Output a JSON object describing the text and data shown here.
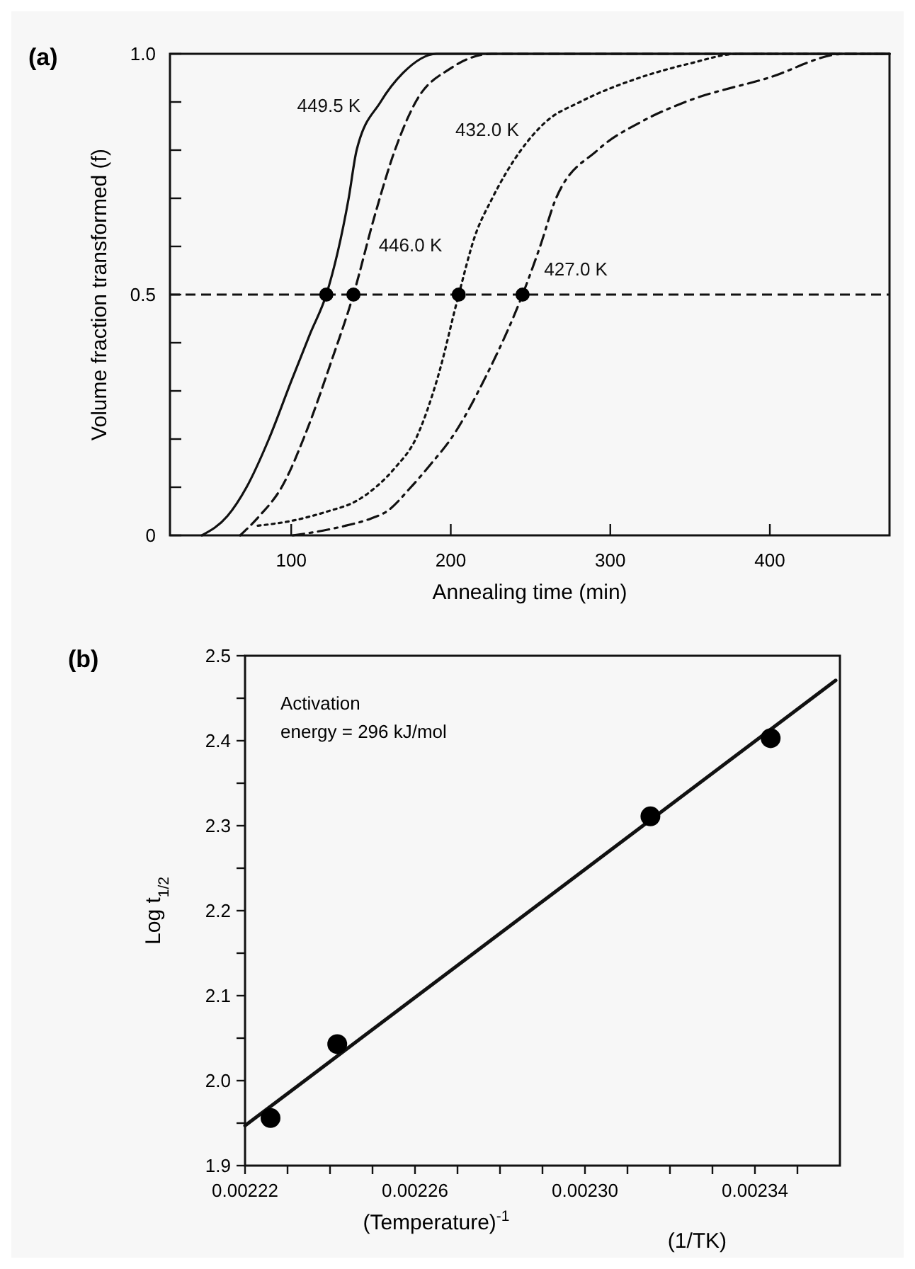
{
  "chart_data": [
    {
      "type": "line",
      "title": "(a)",
      "xlabel": "Annealing time (min)",
      "ylabel": "Volume fraction transformed (f)",
      "xlim": [
        24,
        475
      ],
      "ylim": [
        0,
        1.0
      ],
      "xticks": [
        100,
        200,
        300,
        400
      ],
      "yticks": [
        {
          "value": 0,
          "label": "0"
        },
        {
          "value": 0.1,
          "label": null
        },
        {
          "value": 0.2,
          "label": null
        },
        {
          "value": 0.3,
          "label": null
        },
        {
          "value": 0.4,
          "label": null
        },
        {
          "value": 0.5,
          "label": "0.5"
        },
        {
          "value": 0.6,
          "label": null
        },
        {
          "value": 0.7,
          "label": null
        },
        {
          "value": 0.8,
          "label": null
        },
        {
          "value": 0.9,
          "label": null
        },
        {
          "value": 1.0,
          "label": "1.0"
        }
      ],
      "grid": false,
      "legend": false,
      "series": [
        {
          "name": "449.5 K",
          "color": "#111111",
          "line_style": "solid",
          "x": [
            44,
            60,
            72,
            86,
            100,
            112,
            122,
            136,
            141,
            156,
            170,
            191,
            475
          ],
          "values": [
            0,
            0.04,
            0.1,
            0.2,
            0.32,
            0.42,
            0.5,
            0.7,
            0.8,
            0.9,
            0.96,
            1.0,
            1.0
          ]
        },
        {
          "name": "446.0 K",
          "color": "#111111",
          "line_style": "dashed",
          "x": [
            68,
            80,
            94,
            110,
            125,
            139,
            152,
            165,
            178,
            200,
            226,
            475
          ],
          "values": [
            0,
            0.04,
            0.1,
            0.22,
            0.36,
            0.5,
            0.66,
            0.8,
            0.9,
            0.97,
            1.0,
            1.0
          ]
        },
        {
          "name": "432.0 K",
          "color": "#111111",
          "line_style": "dotted",
          "x": [
            79,
            100,
            123,
            140,
            153,
            165,
            178,
            192,
            205,
            215,
            226,
            244,
            260,
            281,
            318,
            350,
            380,
            475
          ],
          "values": [
            0.02,
            0.03,
            0.05,
            0.07,
            0.1,
            0.14,
            0.2,
            0.33,
            0.5,
            0.62,
            0.7,
            0.8,
            0.86,
            0.9,
            0.95,
            0.98,
            1.0,
            1.0
          ]
        },
        {
          "name": "427.0 K",
          "color": "#111111",
          "line_style": "dashdot",
          "x": [
            101,
            120,
            134,
            150,
            160,
            175,
            188,
            200,
            222,
            245,
            256,
            266,
            292,
            320,
            347,
            399,
            447,
            475
          ],
          "values": [
            0,
            0.01,
            0.02,
            0.035,
            0.05,
            0.1,
            0.15,
            0.2,
            0.33,
            0.5,
            0.6,
            0.7,
            0.8,
            0.86,
            0.9,
            0.95,
            1.0,
            1.0
          ]
        },
        {
          "type": "scatter",
          "color": "#000000",
          "marker": "circle",
          "x": [
            122,
            139,
            205,
            245
          ],
          "values": [
            0.5,
            0.5,
            0.5,
            0.5
          ]
        }
      ],
      "ref_lines": [
        {
          "axis": "y",
          "value": 0.5,
          "color": "#111111",
          "line_style": "dashed"
        }
      ]
    },
    {
      "type": "scatter",
      "title": "(b)",
      "xlabel": "(Temperature)$^{-1}$",
      "ylabel": "Log t$_{1/2}$",
      "xlim": [
        0.00222,
        0.00236
      ],
      "ylim": [
        1.9,
        2.5
      ],
      "xticks": [
        0.00222,
        {
          "value": 0.00223,
          "label": null
        },
        {
          "value": 0.00224,
          "label": null
        },
        {
          "value": 0.00225,
          "label": null
        },
        0.00226,
        {
          "value": 0.00227,
          "label": null
        },
        {
          "value": 0.00228,
          "label": null
        },
        {
          "value": 0.00229,
          "label": null
        },
        {
          "value": 0.0023,
          "label": "0.00230"
        },
        {
          "value": 0.00231,
          "label": null
        },
        {
          "value": 0.00232,
          "label": null
        },
        {
          "value": 0.00233,
          "label": null
        },
        0.00234,
        {
          "value": 0.00235,
          "label": null
        }
      ],
      "yticks": [
        1.9,
        {
          "value": 1.95,
          "label": null
        },
        {
          "value": 2.0,
          "label": "2.0"
        },
        {
          "value": 2.05,
          "label": null
        },
        2.1,
        {
          "value": 2.15,
          "label": null
        },
        2.2,
        {
          "value": 2.25,
          "label": null
        },
        2.3,
        {
          "value": 2.35,
          "label": null
        },
        2.4,
        {
          "value": 2.45,
          "label": null
        },
        2.5
      ],
      "grid": false,
      "legend": false,
      "series": [
        {
          "type": "line",
          "color": "#111111",
          "line_style": "solid",
          "x": [
            0.00222,
            0.002359
          ],
          "values": [
            1.947,
            2.471
          ]
        },
        {
          "color": "#000000",
          "marker": "circle",
          "x": [
            0.002226,
            0.0022417,
            0.0023154,
            0.0023437
          ],
          "values": [
            1.956,
            2.043,
            2.311,
            2.403
          ]
        }
      ],
      "annotations": [
        "Activation\nenergy = 296 kJ/mol",
        "(1/TK)"
      ]
    }
  ]
}
